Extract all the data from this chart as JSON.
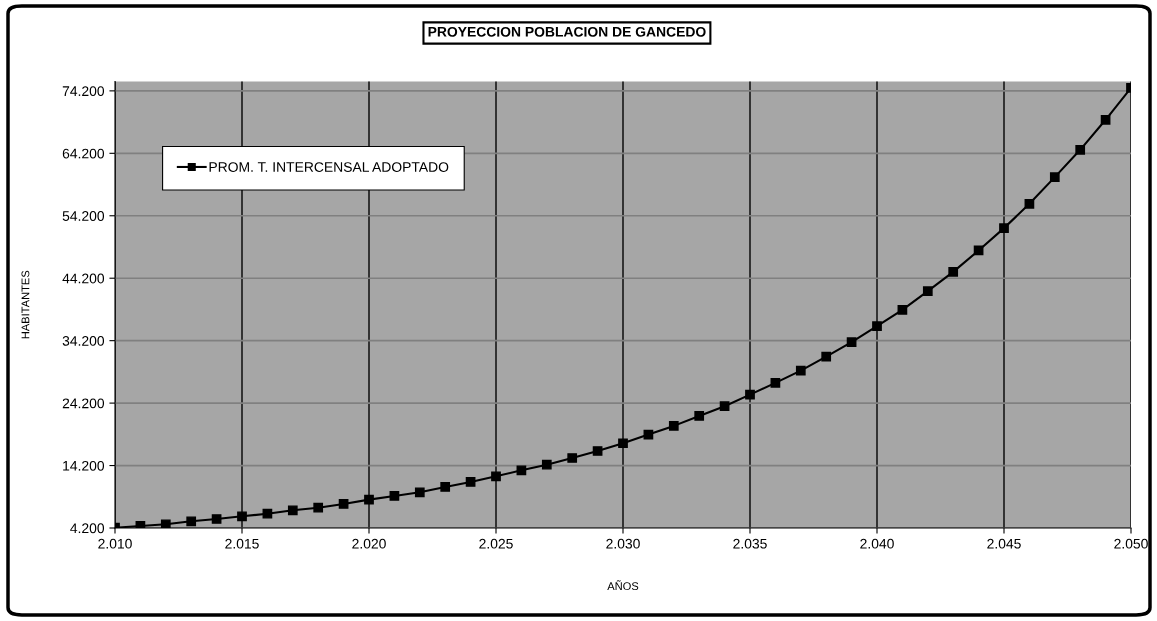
{
  "chart_data": {
    "type": "line",
    "title": "PROYECCION POBLACION DE GANCEDO",
    "xlabel": "AÑOS",
    "ylabel": "HABITANTES",
    "x": [
      2010,
      2011,
      2012,
      2013,
      2014,
      2015,
      2016,
      2017,
      2018,
      2019,
      2020,
      2021,
      2022,
      2023,
      2024,
      2025,
      2026,
      2027,
      2028,
      2029,
      2030,
      2031,
      2032,
      2033,
      2034,
      2035,
      2036,
      2037,
      2038,
      2039,
      2040,
      2041,
      2042,
      2043,
      2044,
      2045,
      2046,
      2047,
      2048,
      2049,
      2050
    ],
    "series": [
      {
        "name": "PROM. T. INTERCENSAL ADOPTADO",
        "color": "#000000",
        "values": [
          4250,
          4530,
          4790,
          5270,
          5640,
          6070,
          6490,
          7030,
          7450,
          8050,
          8740,
          9330,
          9920,
          10770,
          11570,
          12480,
          13440,
          14340,
          15410,
          16530,
          17770,
          19160,
          20550,
          22150,
          23700,
          25560,
          27440,
          29410,
          31650,
          33960,
          36520,
          39130,
          42130,
          45220,
          48640,
          52220,
          56120,
          60390,
          64760,
          69570,
          74680
        ]
      }
    ],
    "xlim": [
      2010,
      2050
    ],
    "xticks": [
      {
        "value": 2010,
        "label": "2.010"
      },
      {
        "value": 2015,
        "label": "2.015"
      },
      {
        "value": 2020,
        "label": "2.020"
      },
      {
        "value": 2025,
        "label": "2.025"
      },
      {
        "value": 2030,
        "label": "2.030"
      },
      {
        "value": 2035,
        "label": "2.035"
      },
      {
        "value": 2040,
        "label": "2.040"
      },
      {
        "value": 2045,
        "label": "2.045"
      },
      {
        "value": 2050,
        "label": "2.050"
      }
    ],
    "ylim": [
      4200,
      75700
    ],
    "yticks": [
      {
        "value": 4200,
        "label": "4.200"
      },
      {
        "value": 14200,
        "label": "14.200"
      },
      {
        "value": 24200,
        "label": "24.200"
      },
      {
        "value": 34200,
        "label": "34.200"
      },
      {
        "value": 44200,
        "label": "44.200"
      },
      {
        "value": 54200,
        "label": "54.200"
      },
      {
        "value": 64200,
        "label": "64.200"
      },
      {
        "value": 74200,
        "label": "74.200"
      }
    ],
    "grid": true,
    "legend": "top left",
    "marker": "square",
    "line_style": "solid"
  }
}
